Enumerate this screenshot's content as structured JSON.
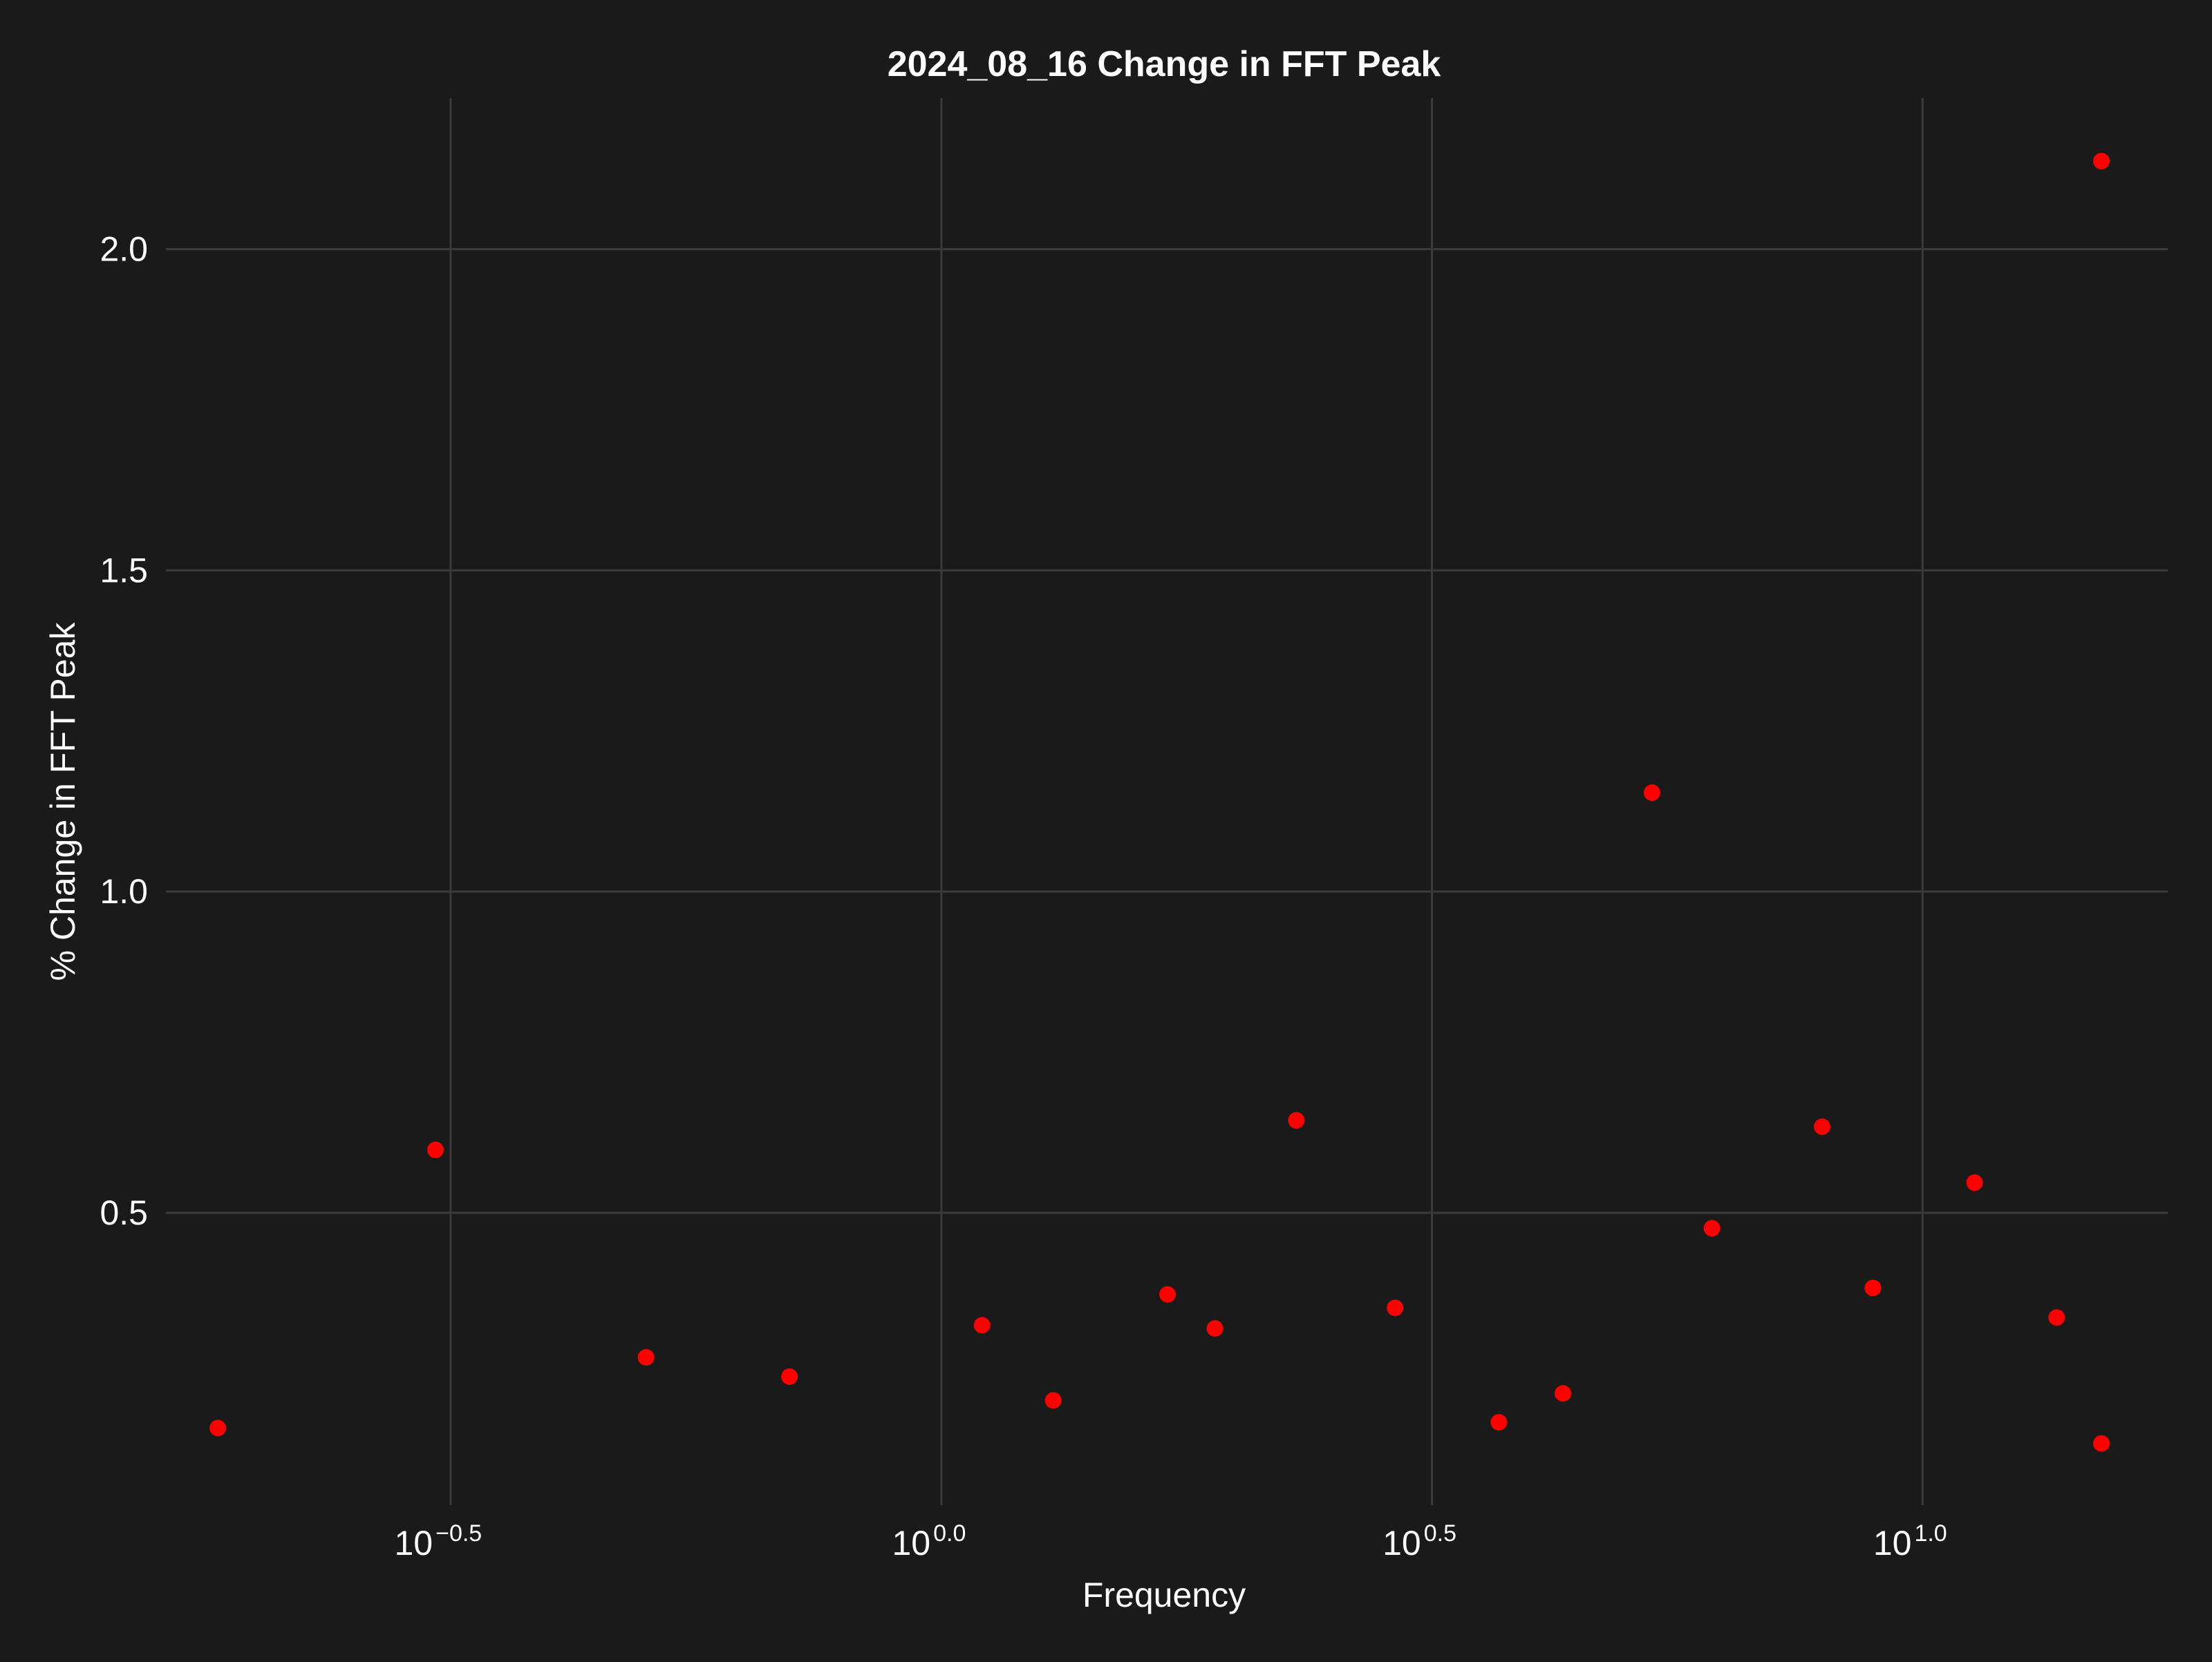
{
  "chart_data": {
    "type": "scatter",
    "title": "2024_08_16 Change in FFT Peak",
    "xlabel": "Frequency",
    "ylabel": "% Change in FFT Peak",
    "x_scale": "log10",
    "x_ticks": [
      {
        "value": 0.316,
        "base": "10",
        "exp": "−0.5"
      },
      {
        "value": 1.0,
        "base": "10",
        "exp": "0.0"
      },
      {
        "value": 3.162,
        "base": "10",
        "exp": "0.5"
      },
      {
        "value": 10.0,
        "base": "10",
        "exp": "1.0"
      }
    ],
    "y_ticks": [
      {
        "value": 0.5,
        "label": "0.5"
      },
      {
        "value": 1.0,
        "label": "1.0"
      },
      {
        "value": 1.5,
        "label": "1.5"
      },
      {
        "value": 2.0,
        "label": "2.0"
      }
    ],
    "xlim": [
      0.162,
      17.78
    ],
    "ylim": [
      0.045,
      2.235
    ],
    "grid": true,
    "colors": {
      "background": "#1a1a1a",
      "grid": "#3a3a3a",
      "text": "#ffffff",
      "point": "#ff0000"
    },
    "points": [
      {
        "x": 0.183,
        "y": 0.165
      },
      {
        "x": 0.305,
        "y": 0.598
      },
      {
        "x": 0.5,
        "y": 0.275
      },
      {
        "x": 0.7,
        "y": 0.245
      },
      {
        "x": 1.1,
        "y": 0.325
      },
      {
        "x": 1.3,
        "y": 0.208
      },
      {
        "x": 1.7,
        "y": 0.373
      },
      {
        "x": 1.9,
        "y": 0.32
      },
      {
        "x": 2.3,
        "y": 0.644
      },
      {
        "x": 2.9,
        "y": 0.352
      },
      {
        "x": 3.7,
        "y": 0.174
      },
      {
        "x": 4.3,
        "y": 0.219
      },
      {
        "x": 5.3,
        "y": 1.154
      },
      {
        "x": 6.1,
        "y": 0.476
      },
      {
        "x": 7.9,
        "y": 0.634
      },
      {
        "x": 8.9,
        "y": 0.383
      },
      {
        "x": 11.3,
        "y": 0.547
      },
      {
        "x": 13.7,
        "y": 0.337
      },
      {
        "x": 16.7,
        "y": 2.137
      },
      {
        "x": 19.8,
        "y": 0.141
      }
    ]
  }
}
